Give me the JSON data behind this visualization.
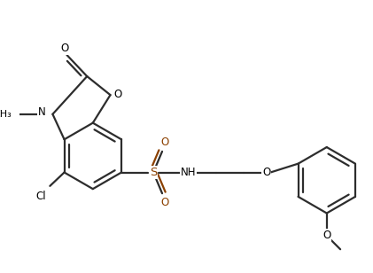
{
  "bg_color": "#ffffff",
  "lw": 1.6,
  "figsize": [
    4.21,
    3.08
  ],
  "dpi": 100,
  "xlim": [
    -0.5,
    8.5
  ],
  "ylim": [
    -2.5,
    4.5
  ],
  "bond_gray": "#2d2d2d",
  "sulfonyl_color": "#8b4000"
}
